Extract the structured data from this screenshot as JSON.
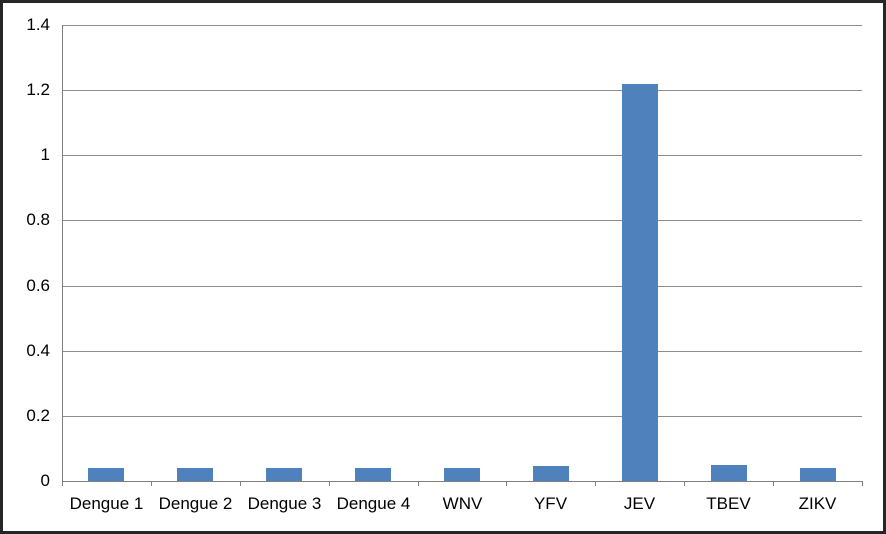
{
  "chart_data": {
    "type": "bar",
    "title": "",
    "xlabel": "",
    "ylabel": "",
    "categories": [
      "Dengue 1",
      "Dengue 2",
      "Dengue 3",
      "Dengue 4",
      "WNV",
      "YFV",
      "JEV",
      "TBEV",
      "ZIKV"
    ],
    "values": [
      0.04,
      0.04,
      0.04,
      0.04,
      0.04,
      0.045,
      1.22,
      0.05,
      0.04
    ],
    "ylim": [
      0,
      1.4
    ],
    "ytick_step": 0.2,
    "ytick_labels": [
      "0",
      "0.2",
      "0.4",
      "0.6",
      "0.8",
      "1",
      "1.2",
      "1.4"
    ],
    "grid": true,
    "legend": false,
    "colors": {
      "bar": "#4f81bd",
      "gridline": "#8e8e8e",
      "axis": "#808080",
      "text": "#000000",
      "frame_border": "#262626",
      "background": "#ffffff"
    }
  }
}
